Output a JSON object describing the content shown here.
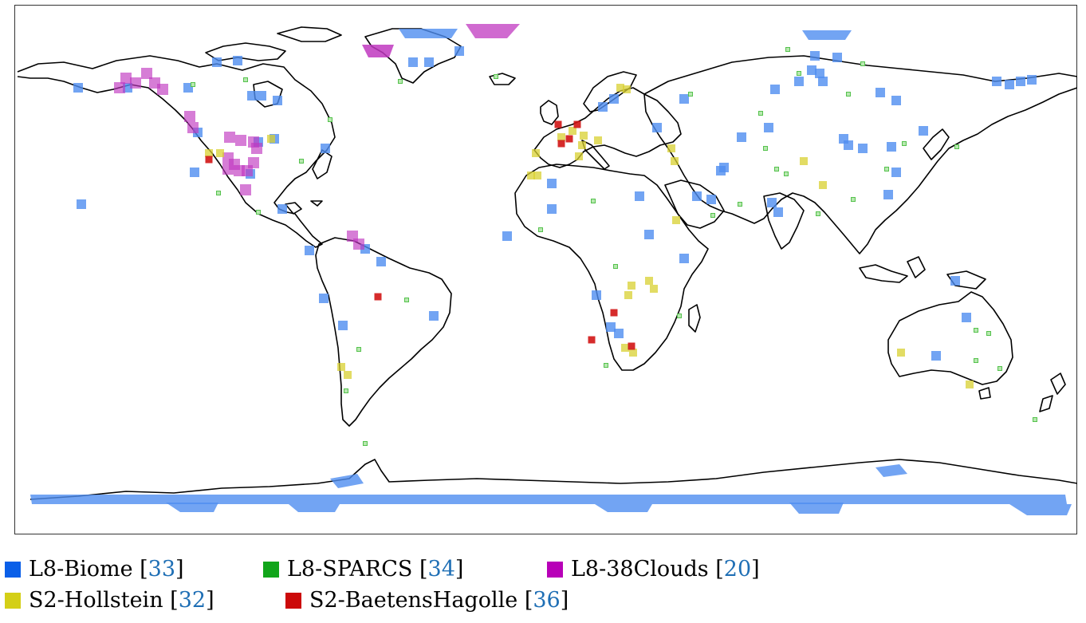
{
  "map": {
    "colors": {
      "l8_biome": "#4f8df0",
      "l8_sparcs": "#55c24d",
      "l8_38clouds": "#c038c0",
      "s2_hollstein": "#d8d030",
      "s2_baetens": "#d21414",
      "coastline": "#000000"
    }
  },
  "legend": {
    "items": [
      {
        "label": "L8-Biome",
        "ref": "33",
        "color": "#0a5fe8"
      },
      {
        "label": "L8-SPARCS",
        "ref": "34",
        "color": "#11a51a"
      },
      {
        "label": "L8-38Clouds",
        "ref": "20",
        "color": "#b800b8"
      },
      {
        "label": "S2-Hollstein",
        "ref": "32",
        "color": "#d4cf17"
      },
      {
        "label": "S2-BaetensHagolle",
        "ref": "36",
        "color": "#cc0a0a"
      }
    ]
  }
}
